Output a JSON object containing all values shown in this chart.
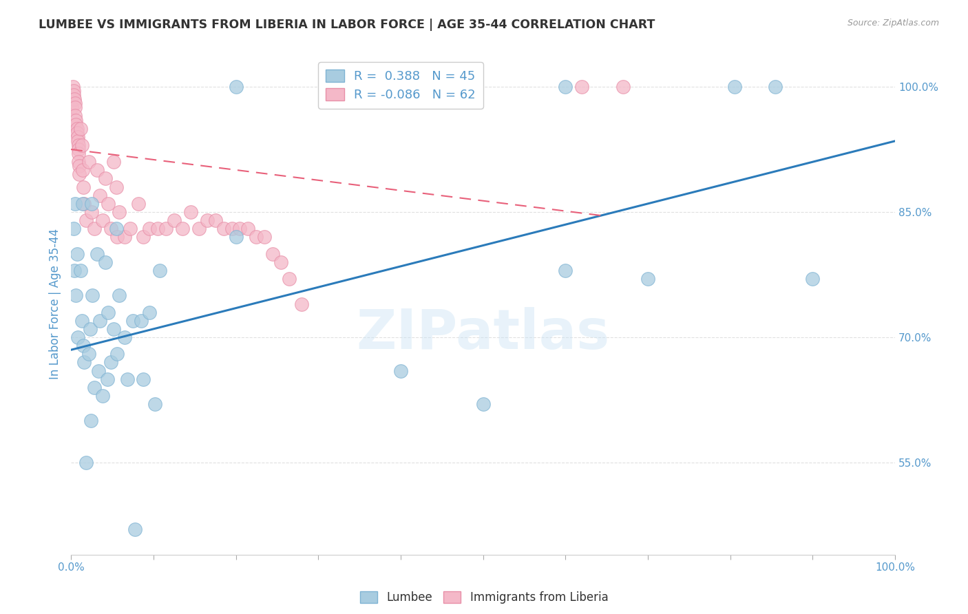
{
  "title": "LUMBEE VS IMMIGRANTS FROM LIBERIA IN LABOR FORCE | AGE 35-44 CORRELATION CHART",
  "source": "Source: ZipAtlas.com",
  "ylabel": "In Labor Force | Age 35-44",
  "watermark": "ZIPatlas",
  "legend_blue_r_val": "0.388",
  "legend_blue_n": "45",
  "legend_pink_r_val": "-0.086",
  "legend_pink_n": "62",
  "lumbee_label": "Lumbee",
  "liberia_label": "Immigrants from Liberia",
  "xlim": [
    0.0,
    1.0
  ],
  "ylim": [
    0.44,
    1.04
  ],
  "ytick_labels_right": [
    "55.0%",
    "70.0%",
    "85.0%",
    "100.0%"
  ],
  "ytick_values_right": [
    0.55,
    0.7,
    0.85,
    1.0
  ],
  "blue_color": "#a8cce0",
  "blue_edge_color": "#7fb3d3",
  "pink_color": "#f4b8c8",
  "pink_edge_color": "#e88fa8",
  "blue_line_color": "#2b7bba",
  "pink_line_color": "#e8607a",
  "title_color": "#333333",
  "axis_color": "#5599cc",
  "grid_color": "#e0e0e0",
  "lumbee_x": [
    0.005,
    0.003,
    0.007,
    0.004,
    0.006,
    0.008,
    0.012,
    0.015,
    0.013,
    0.018,
    0.016,
    0.014,
    0.022,
    0.025,
    0.023,
    0.028,
    0.026,
    0.024,
    0.032,
    0.035,
    0.033,
    0.038,
    0.042,
    0.045,
    0.048,
    0.044,
    0.055,
    0.058,
    0.052,
    0.056,
    0.065,
    0.068,
    0.075,
    0.078,
    0.085,
    0.088,
    0.095,
    0.102,
    0.108,
    0.2,
    0.4,
    0.5,
    0.6,
    0.7,
    0.9
  ],
  "lumbee_y": [
    0.86,
    0.83,
    0.8,
    0.78,
    0.75,
    0.7,
    0.78,
    0.69,
    0.72,
    0.55,
    0.67,
    0.86,
    0.68,
    0.86,
    0.71,
    0.64,
    0.75,
    0.6,
    0.8,
    0.72,
    0.66,
    0.63,
    0.79,
    0.73,
    0.67,
    0.65,
    0.83,
    0.75,
    0.71,
    0.68,
    0.7,
    0.65,
    0.72,
    0.47,
    0.72,
    0.65,
    0.73,
    0.62,
    0.78,
    0.82,
    0.66,
    0.62,
    0.78,
    0.77,
    0.77
  ],
  "liberia_x": [
    0.001,
    0.002,
    0.003,
    0.003,
    0.004,
    0.005,
    0.005,
    0.005,
    0.006,
    0.006,
    0.007,
    0.007,
    0.008,
    0.008,
    0.009,
    0.009,
    0.009,
    0.009,
    0.01,
    0.01,
    0.012,
    0.013,
    0.014,
    0.015,
    0.016,
    0.018,
    0.022,
    0.025,
    0.028,
    0.032,
    0.035,
    0.038,
    0.042,
    0.045,
    0.048,
    0.052,
    0.055,
    0.058,
    0.056,
    0.065,
    0.072,
    0.082,
    0.088,
    0.095,
    0.105,
    0.115,
    0.125,
    0.135,
    0.145,
    0.155,
    0.165,
    0.175,
    0.185,
    0.195,
    0.205,
    0.215,
    0.225,
    0.235,
    0.245,
    0.255,
    0.265,
    0.28
  ],
  "liberia_y": [
    0.975,
    1.0,
    0.995,
    0.99,
    0.985,
    0.98,
    0.975,
    0.965,
    0.96,
    0.955,
    0.95,
    0.945,
    0.94,
    0.935,
    0.93,
    0.925,
    0.92,
    0.91,
    0.905,
    0.895,
    0.95,
    0.93,
    0.9,
    0.88,
    0.86,
    0.84,
    0.91,
    0.85,
    0.83,
    0.9,
    0.87,
    0.84,
    0.89,
    0.86,
    0.83,
    0.91,
    0.88,
    0.85,
    0.82,
    0.82,
    0.83,
    0.86,
    0.82,
    0.83,
    0.83,
    0.83,
    0.84,
    0.83,
    0.85,
    0.83,
    0.84,
    0.84,
    0.83,
    0.83,
    0.83,
    0.83,
    0.82,
    0.82,
    0.8,
    0.79,
    0.77,
    0.74
  ],
  "top_blue_points_x": [
    0.2,
    0.4,
    0.6,
    0.805,
    0.855
  ],
  "top_blue_points_y": [
    1.0,
    1.0,
    1.0,
    1.0,
    1.0
  ],
  "top_pink_points_x": [
    0.62,
    0.67
  ],
  "top_pink_points_y": [
    1.0,
    1.0
  ],
  "blue_trendline_x": [
    0.0,
    1.0
  ],
  "blue_trendline_y": [
    0.685,
    0.935
  ],
  "pink_trendline_x": [
    0.0,
    0.65
  ],
  "pink_trendline_y": [
    0.925,
    0.845
  ]
}
